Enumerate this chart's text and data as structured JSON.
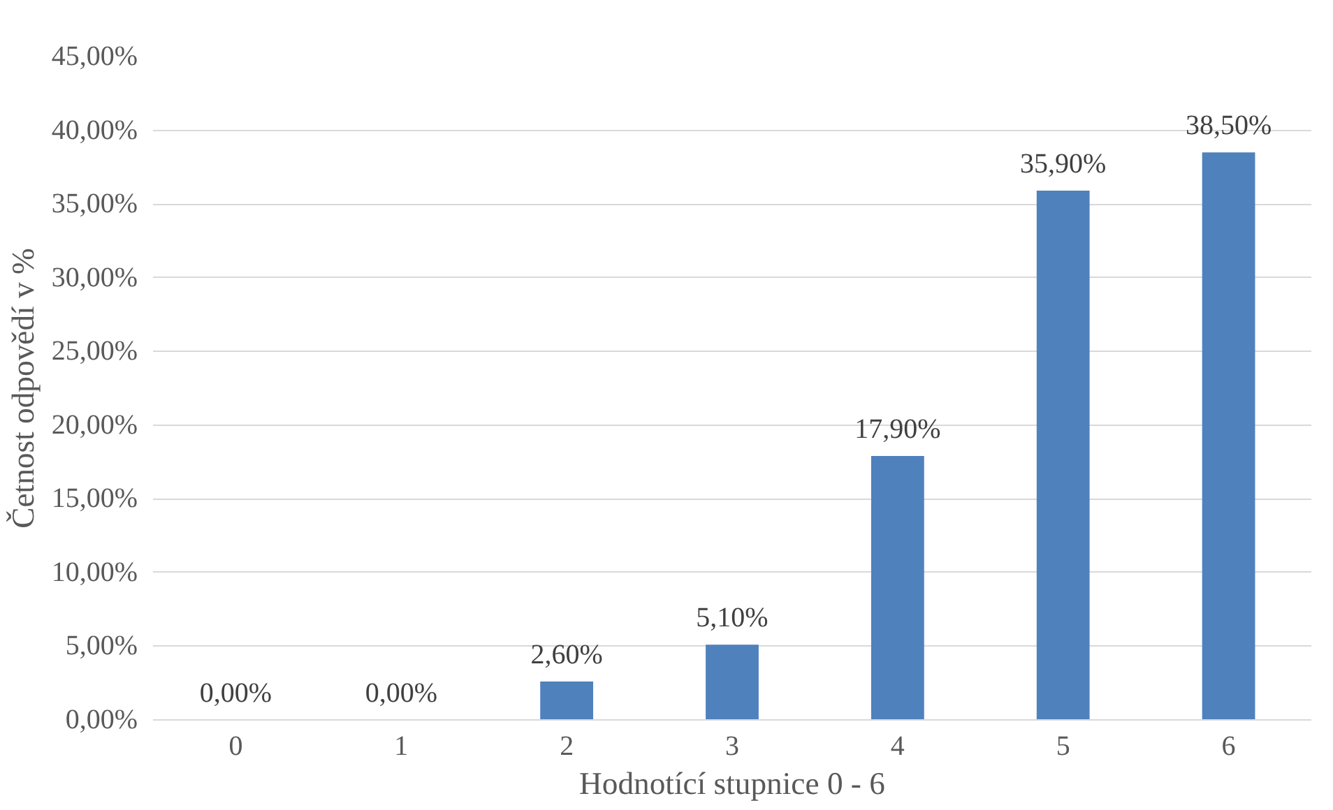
{
  "chart_data": {
    "type": "bar",
    "xlabel": "Hodnotící stupnice 0 - 6",
    "ylabel": "Četnost odpovědí v %",
    "categories": [
      "0",
      "1",
      "2",
      "3",
      "4",
      "5",
      "6"
    ],
    "values": [
      0,
      0,
      2.6,
      5.1,
      17.9,
      35.9,
      38.5
    ],
    "value_labels": [
      "0,00%",
      "0,00%",
      "2,60%",
      "5,10%",
      "17,90%",
      "35,90%",
      "38,50%"
    ],
    "color": "#4f81bd",
    "ylim": [
      0,
      45
    ],
    "yticks": [
      {
        "value": 0,
        "label": "0,00%"
      },
      {
        "value": 5,
        "label": "5,00%"
      },
      {
        "value": 10,
        "label": "10,00%"
      },
      {
        "value": 15,
        "label": "15,00%"
      },
      {
        "value": 20,
        "label": "20,00%"
      },
      {
        "value": 25,
        "label": "25,00%"
      },
      {
        "value": 30,
        "label": "30,00%"
      },
      {
        "value": 35,
        "label": "35,00%"
      },
      {
        "value": 40,
        "label": "40,00%"
      },
      {
        "value": 45,
        "label": "45,00%"
      }
    ],
    "grid": "y"
  }
}
